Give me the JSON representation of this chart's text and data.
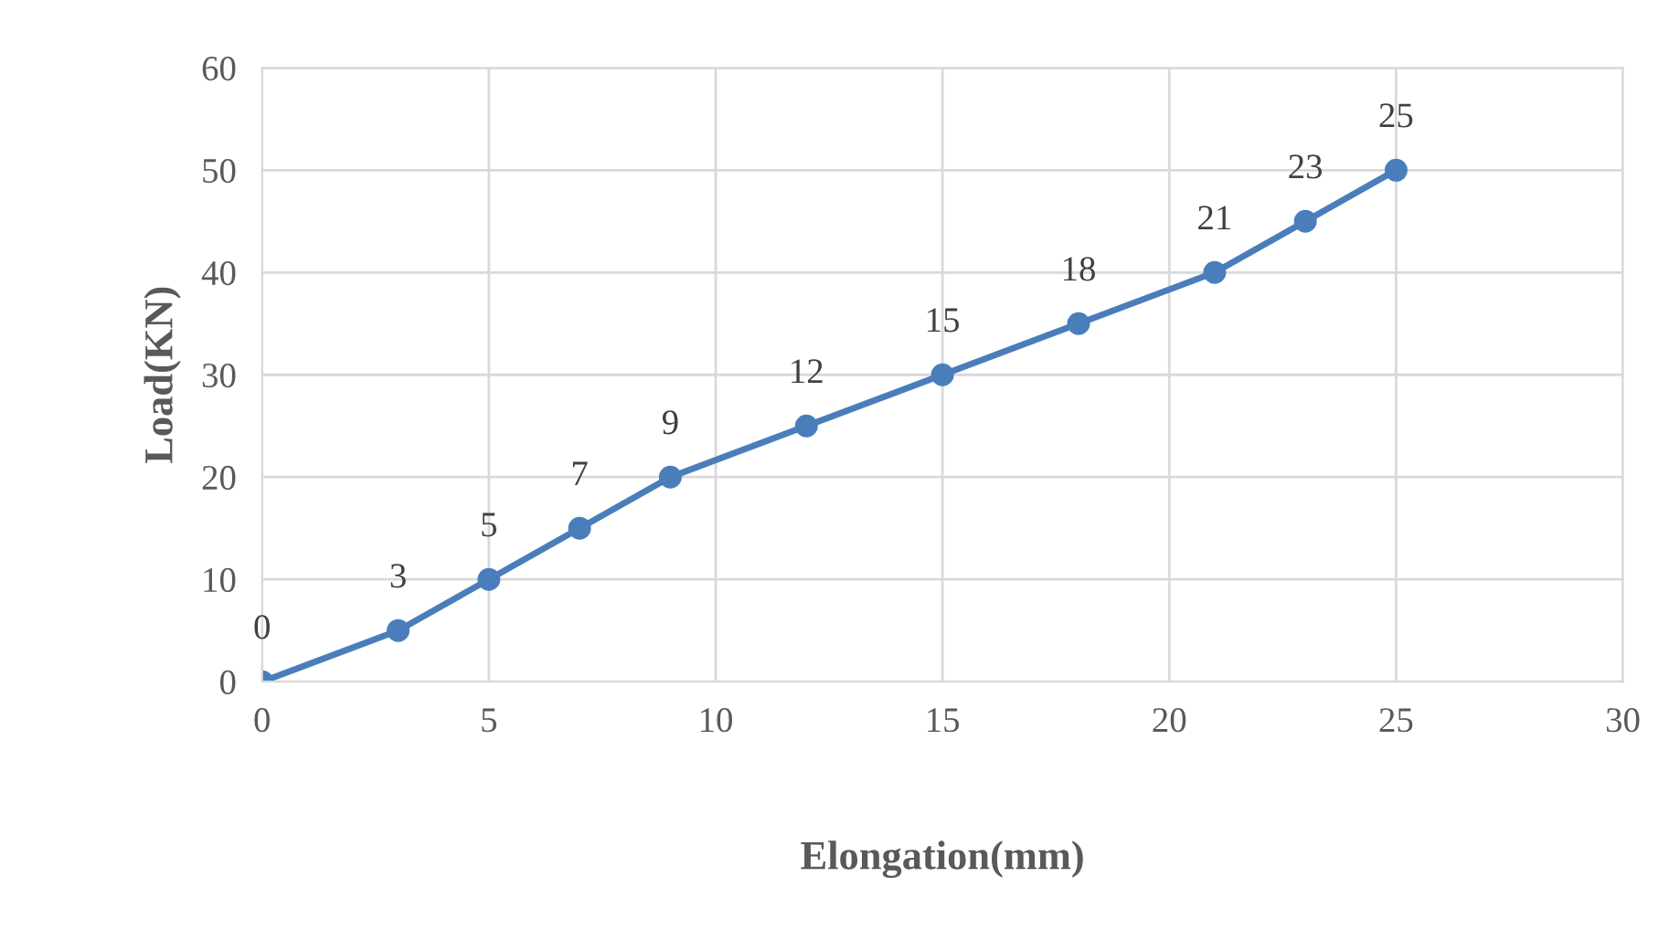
{
  "chart_data": {
    "type": "line",
    "xlabel": "Elongation(mm)",
    "ylabel": "Load(KN)",
    "x": [
      0,
      3,
      5,
      7,
      9,
      12,
      15,
      18,
      21,
      23,
      25
    ],
    "series": [
      {
        "color": "#4a7ebb",
        "values": [
          0,
          5,
          10,
          15,
          20,
          25,
          30,
          35,
          40,
          45,
          50
        ]
      }
    ],
    "annotations": [
      {
        "text": "0",
        "x": 0,
        "y": 0
      },
      {
        "text": "3",
        "x": 3,
        "y": 5
      },
      {
        "text": "5",
        "x": 5,
        "y": 10
      },
      {
        "text": "7",
        "x": 7,
        "y": 15
      },
      {
        "text": "9",
        "x": 9,
        "y": 20
      },
      {
        "text": "12",
        "x": 12,
        "y": 25
      },
      {
        "text": "15",
        "x": 15,
        "y": 30
      },
      {
        "text": "18",
        "x": 18,
        "y": 35
      },
      {
        "text": "21",
        "x": 21,
        "y": 40
      },
      {
        "text": "23",
        "x": 23,
        "y": 45
      },
      {
        "text": "25",
        "x": 25,
        "y": 50
      }
    ],
    "xlim": [
      0,
      30
    ],
    "xticks": [
      0,
      5,
      10,
      15,
      20,
      25,
      30
    ],
    "ylim": [
      0,
      60
    ],
    "yticks": [
      0,
      10,
      20,
      30,
      40,
      50,
      60
    ],
    "grid": true,
    "marker": "circle",
    "line_style": "solid"
  }
}
